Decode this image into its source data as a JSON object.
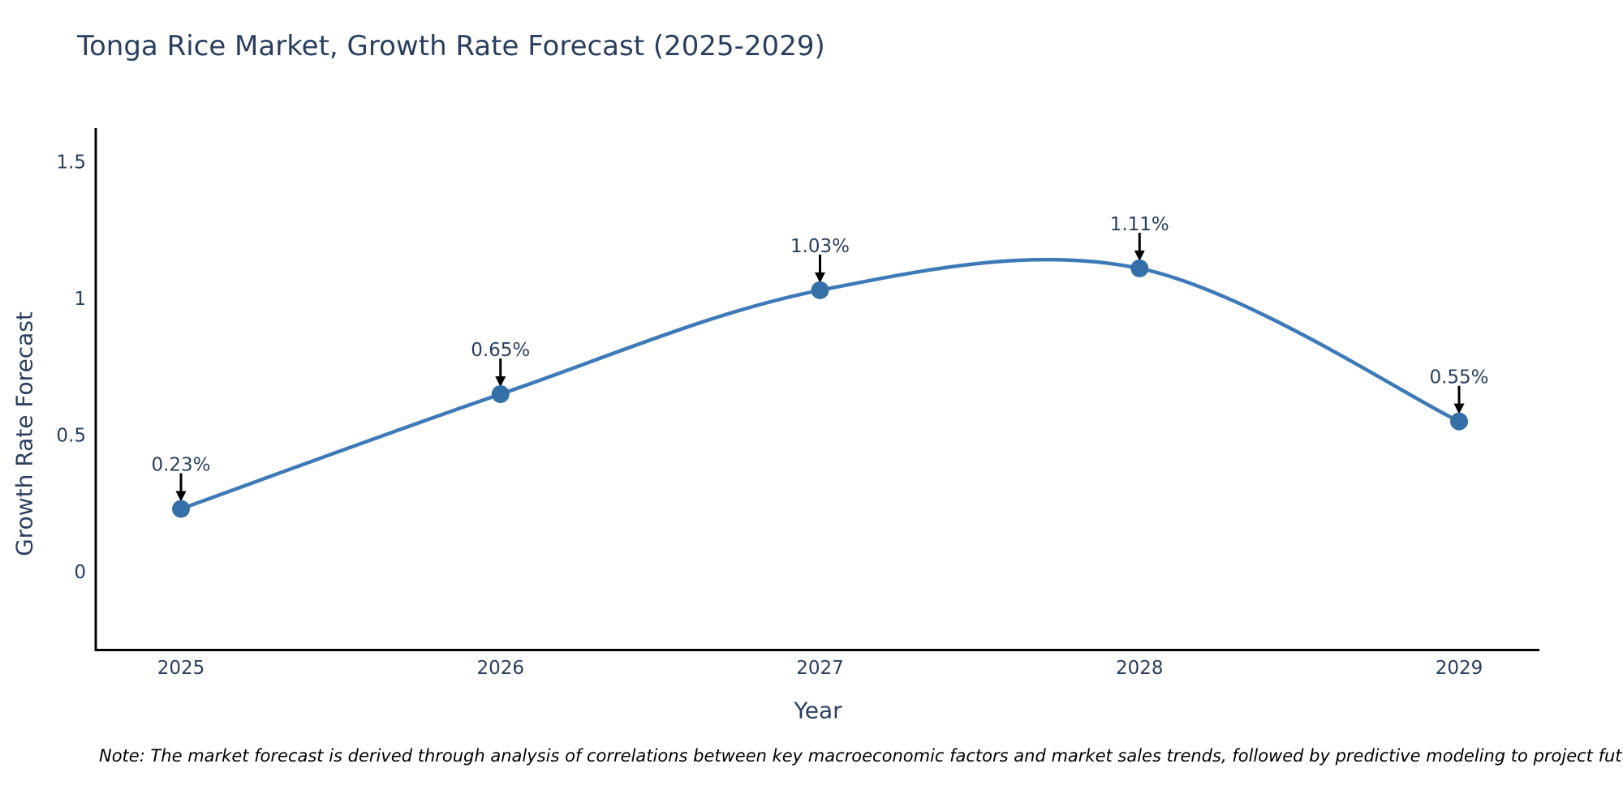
{
  "note": "Note: The market forecast is derived through analysis of correlations between key macroeconomic factors and market sales trends, followed by predictive modeling to project future sales",
  "chart_data": {
    "type": "line",
    "title": "Tonga Rice Market, Growth Rate Forecast (2025-2029)",
    "xlabel": "Year",
    "ylabel": "Growth Rate Forecast",
    "x": [
      2025,
      2026,
      2027,
      2028,
      2029
    ],
    "categories": [
      "2025",
      "2026",
      "2027",
      "2028",
      "2029"
    ],
    "values": [
      0.23,
      0.65,
      1.03,
      1.11,
      0.55
    ],
    "point_labels": [
      "0.23%",
      "0.65%",
      "1.03%",
      "1.11%",
      "0.55%"
    ],
    "y_ticks": [
      "0",
      "0.5",
      "1",
      "1.5"
    ],
    "y_tick_values": [
      0,
      0.5,
      1,
      1.5
    ],
    "ylim": [
      -0.29,
      1.62
    ],
    "xlim": [
      2024.73,
      2029.25
    ],
    "line_shape": "spline",
    "grid": false,
    "legend": "none",
    "colors": {
      "line": "#3d7ab7",
      "marker": "#356fa8",
      "text": "#2a3f5f",
      "axis": "#000000",
      "annotation": "#2a3f5f",
      "arrow": "#000000",
      "background": "#ffffff"
    }
  }
}
